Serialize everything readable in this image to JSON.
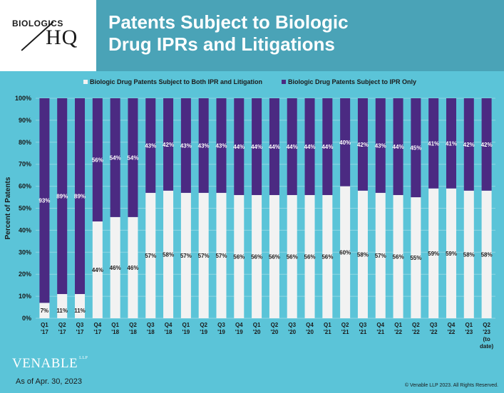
{
  "header": {
    "logo_top": "BIOLOGICS",
    "logo_bottom": "HQ",
    "title_line1": "Patents Subject to Biologic",
    "title_line2": "Drug IPRs and Litigations"
  },
  "footer": {
    "brand": "VENABLE",
    "brand_suffix": "LLP",
    "as_of": "As of Apr. 30, 2023",
    "copyright": "© Venable LLP 2023. All Rights Reserved."
  },
  "chart_data": {
    "type": "bar",
    "stacked": true,
    "percent": true,
    "ylabel": "Percent of Patents",
    "ylim": [
      0,
      100
    ],
    "yticks": [
      "0%",
      "10%",
      "20%",
      "30%",
      "40%",
      "50%",
      "60%",
      "70%",
      "80%",
      "90%",
      "100%"
    ],
    "grid": true,
    "legend_position": "top",
    "categories": [
      [
        "Q1",
        "'17"
      ],
      [
        "Q2",
        "'17"
      ],
      [
        "Q3",
        "'17"
      ],
      [
        "Q4",
        "'17"
      ],
      [
        "Q1",
        "'18"
      ],
      [
        "Q2",
        "'18"
      ],
      [
        "Q3",
        "'18"
      ],
      [
        "Q4",
        "'18"
      ],
      [
        "Q1",
        "'19"
      ],
      [
        "Q2",
        "'19"
      ],
      [
        "Q3",
        "'19"
      ],
      [
        "Q4",
        "'19"
      ],
      [
        "Q1",
        "'20"
      ],
      [
        "Q2",
        "'20"
      ],
      [
        "Q3",
        "'20"
      ],
      [
        "Q4",
        "'20"
      ],
      [
        "Q1",
        "'21"
      ],
      [
        "Q2",
        "'21"
      ],
      [
        "Q3",
        "'21"
      ],
      [
        "Q4",
        "'21"
      ],
      [
        "Q1",
        "'22"
      ],
      [
        "Q2",
        "'22"
      ],
      [
        "Q3",
        "'22"
      ],
      [
        "Q4",
        "'22"
      ],
      [
        "Q1",
        "'23"
      ],
      [
        "Q2",
        "'23",
        "(to",
        "date)"
      ]
    ],
    "series": [
      {
        "name": "Biologic Drug Patents Subject to Both IPR and Litigation",
        "color": "#f2f2f2",
        "values": [
          7,
          11,
          11,
          44,
          46,
          46,
          57,
          58,
          57,
          57,
          57,
          56,
          56,
          56,
          56,
          56,
          56,
          60,
          58,
          57,
          56,
          55,
          59,
          59,
          58,
          58
        ]
      },
      {
        "name": "Biologic Drug Patents Subject to IPR Only",
        "color": "#4b2a82",
        "values": [
          93,
          89,
          89,
          56,
          54,
          54,
          43,
          42,
          43,
          43,
          43,
          44,
          44,
          44,
          44,
          44,
          44,
          40,
          42,
          43,
          44,
          45,
          41,
          41,
          42,
          42
        ]
      }
    ]
  }
}
